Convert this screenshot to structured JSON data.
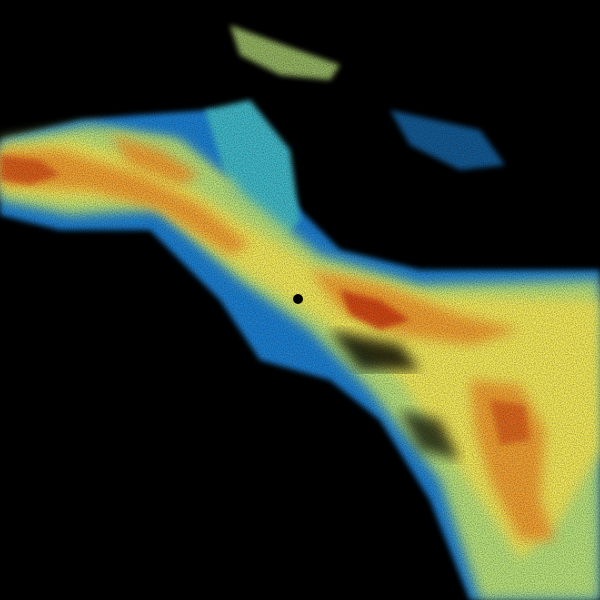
{
  "image": {
    "kind": "radar reflectivity sweep",
    "background": "#000000",
    "palette": {
      "low": "#1f7fd0",
      "low_mid": "#3fb8c8",
      "mid": "#b8e07a",
      "high_mid": "#f2e85a",
      "high": "#f0a030",
      "peak": "#c83010"
    }
  }
}
